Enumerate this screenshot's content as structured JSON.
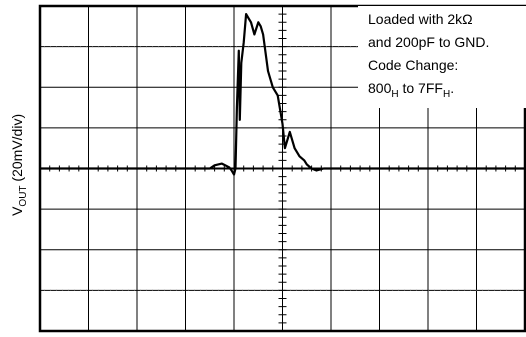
{
  "chart_data": {
    "type": "line",
    "title": "",
    "ylabel": {
      "main": "V",
      "sub": "OUT",
      "rest": " (20mV/div)"
    },
    "xlabel": "",
    "grid": true,
    "divisions": {
      "x": 10,
      "y": 8
    },
    "ylim": [
      -4,
      4
    ],
    "xlim": [
      0,
      10
    ],
    "annotation": {
      "lines": [
        {
          "parts": [
            {
              "t": "Loaded with 2kΩ"
            }
          ]
        },
        {
          "parts": [
            {
              "t": "and 200pF to GND."
            }
          ]
        },
        {
          "parts": [
            {
              "t": "Code Change:"
            }
          ]
        },
        {
          "parts": [
            {
              "t": "800"
            },
            {
              "t": "H",
              "sub": true
            },
            {
              "t": " to 7FF"
            },
            {
              "t": "H",
              "sub": true
            },
            {
              "t": "."
            }
          ]
        }
      ]
    },
    "series": [
      {
        "x": [
          0.0,
          3.5,
          3.6,
          3.75,
          3.9,
          3.95,
          4.0,
          4.03,
          4.06,
          4.1,
          4.12,
          4.15,
          4.2,
          4.25,
          4.3,
          4.35,
          4.42,
          4.5,
          4.55,
          4.6,
          4.7,
          4.8,
          4.9,
          5.0,
          5.05,
          5.15,
          5.25,
          5.35,
          5.45,
          5.5,
          5.55,
          5.6,
          5.7,
          5.85,
          6.0,
          10.0
        ],
        "y": [
          0.0,
          0.0,
          0.08,
          0.12,
          0.03,
          -0.05,
          -0.15,
          0.0,
          1.5,
          2.9,
          1.2,
          2.6,
          3.1,
          3.8,
          3.7,
          3.6,
          3.3,
          3.6,
          3.5,
          3.3,
          2.4,
          2.0,
          1.8,
          1.1,
          0.5,
          0.9,
          0.5,
          0.3,
          0.2,
          0.1,
          0.05,
          0.0,
          -0.05,
          0.0,
          0.0,
          0.0
        ]
      }
    ]
  }
}
